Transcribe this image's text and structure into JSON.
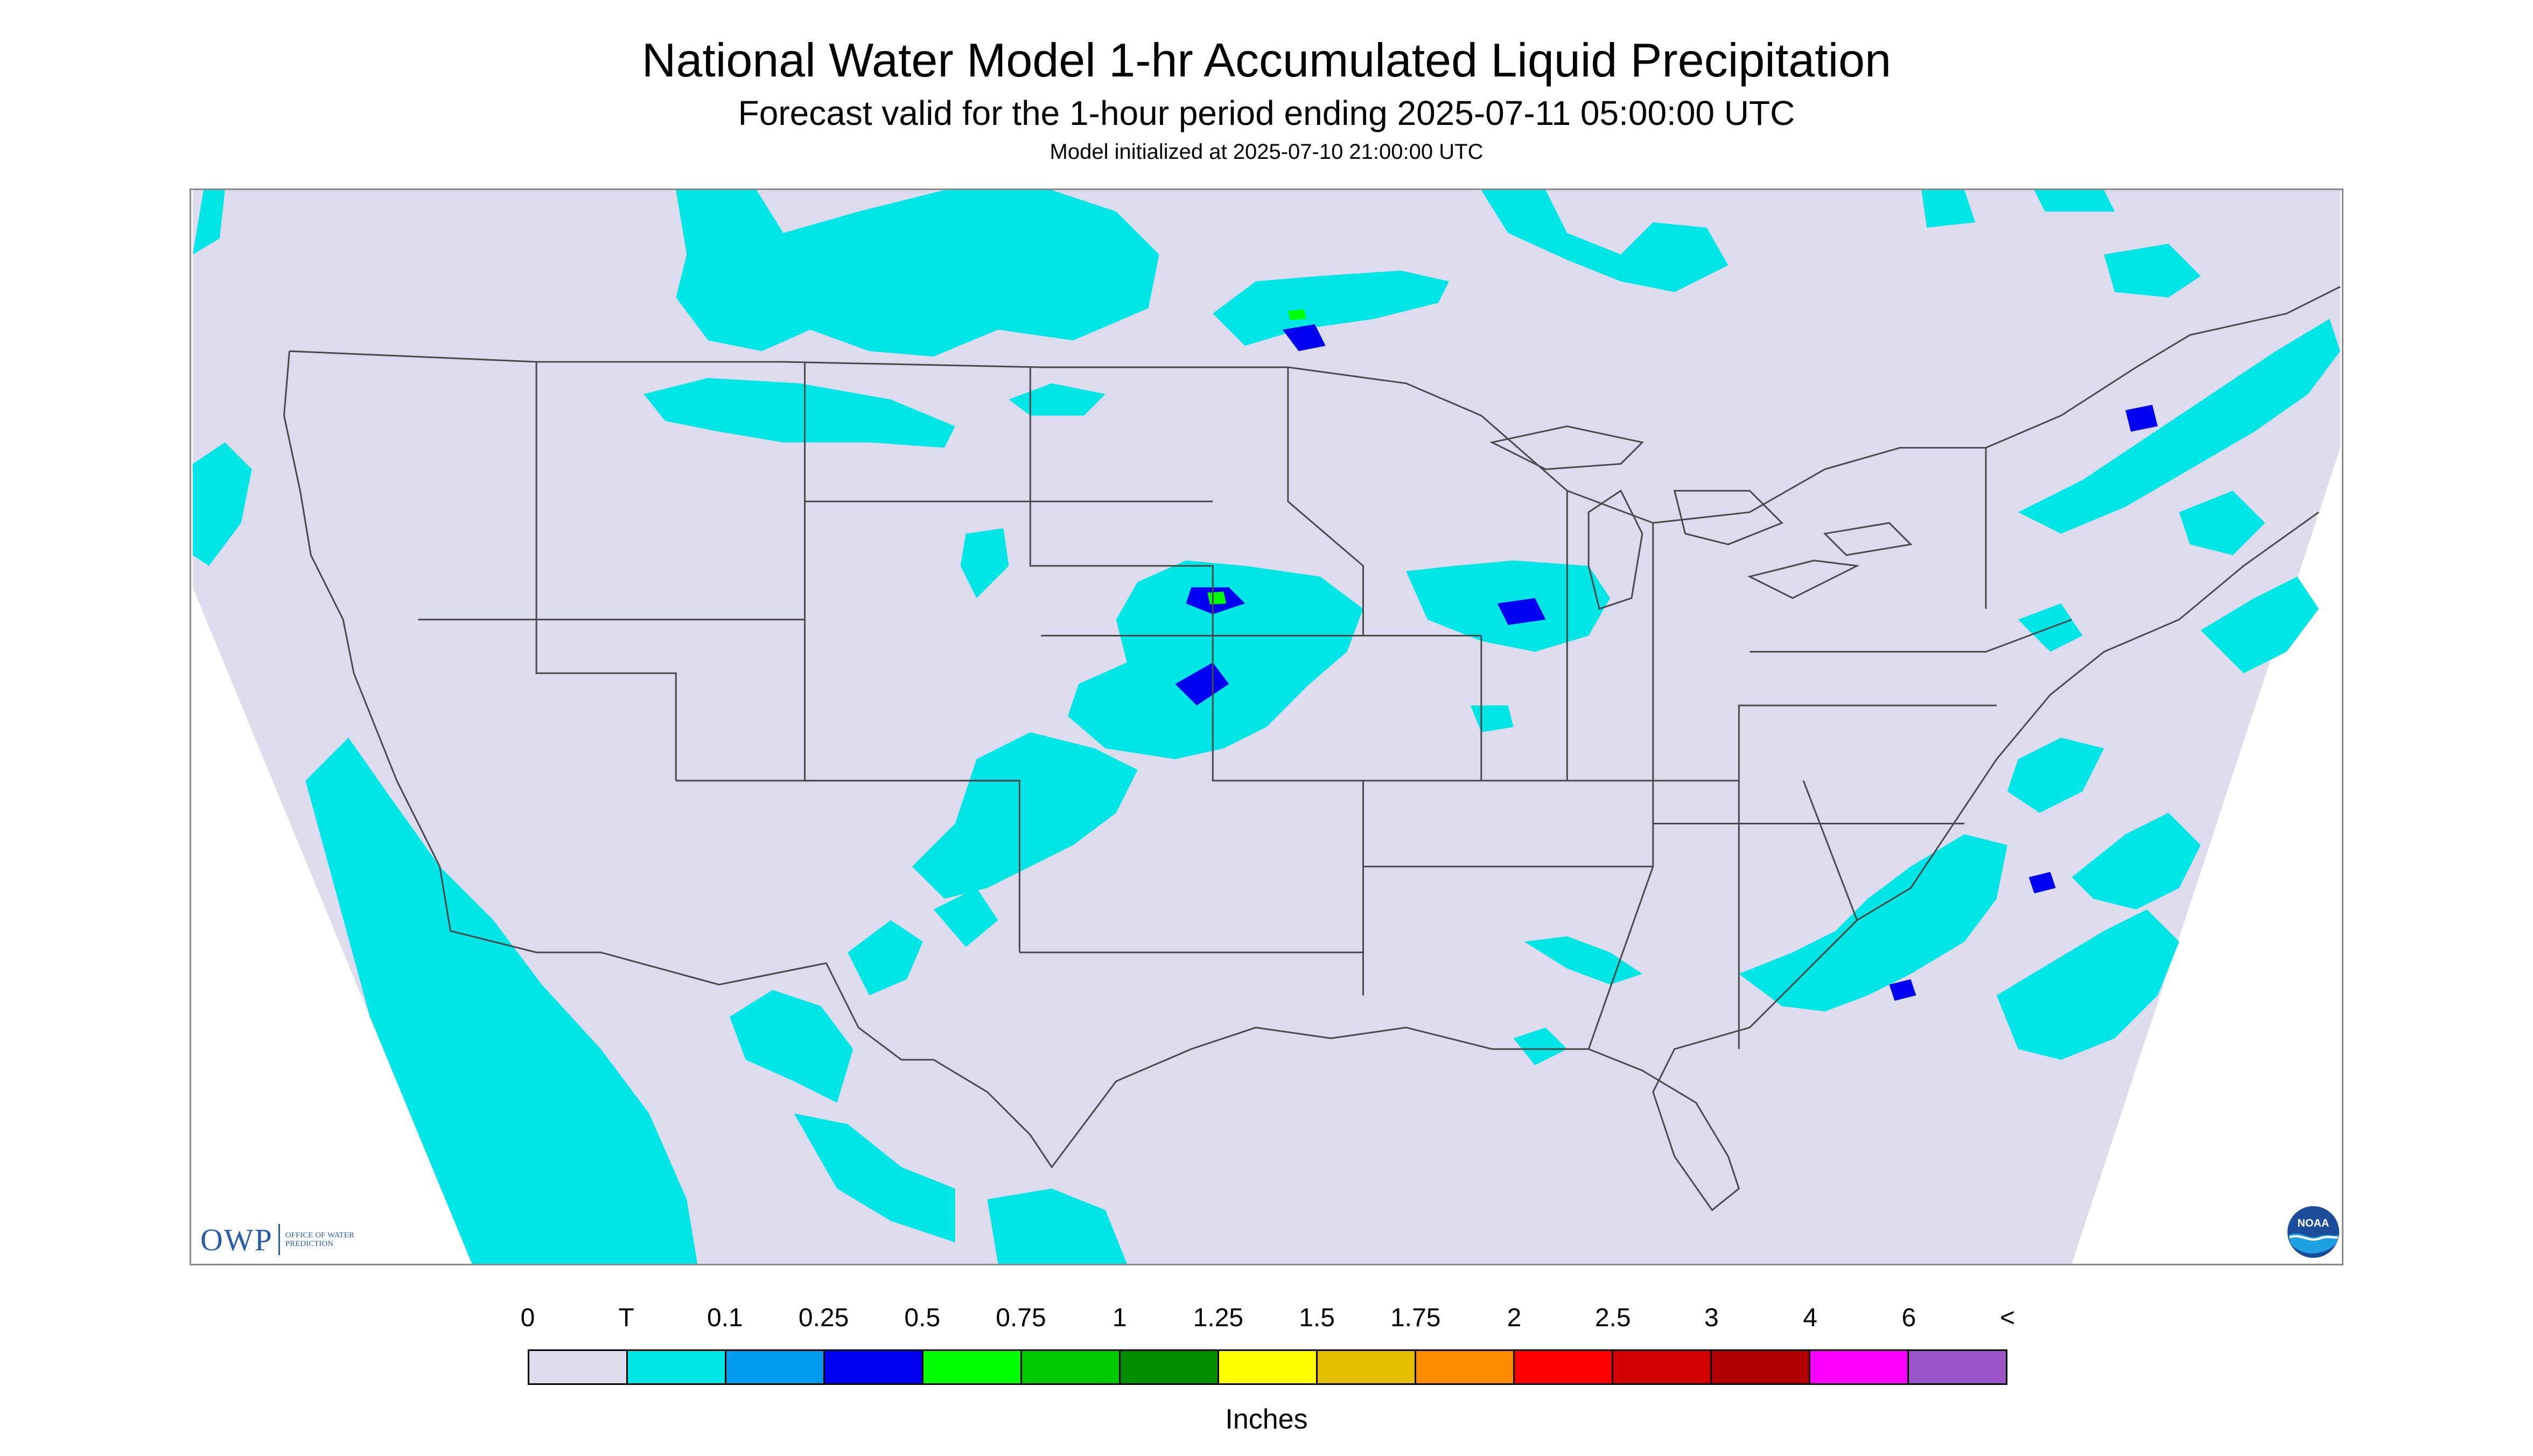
{
  "title": "National Water Model 1-hr Accumulated Liquid Precipitation",
  "subtitle": "Forecast valid for the 1-hour period ending 2025-07-11 05:00:00 UTC",
  "init_line": "Model initialized at 2025-07-10 21:00:00 UTC",
  "logos": {
    "owp_mark": "OWP",
    "owp_text": "Office of Water Prediction",
    "noaa_text": "NOAA"
  },
  "legend": {
    "unit_label": "Inches",
    "labels": [
      "0",
      "T",
      "0.1",
      "0.25",
      "0.5",
      "0.75",
      "1",
      "1.25",
      "1.5",
      "1.75",
      "2",
      "2.5",
      "3",
      "4",
      "6",
      "<"
    ],
    "colors": [
      "#dcdcee",
      "#00e5e5",
      "#009cf0",
      "#0000f0",
      "#00ff00",
      "#00c800",
      "#008c00",
      "#ffff00",
      "#e6be00",
      "#ff8c00",
      "#ff0000",
      "#d20000",
      "#b40000",
      "#ff00ff",
      "#9955c9"
    ]
  },
  "map": {
    "background_color": "#dcdcee",
    "outside_domain_color": "#ffffff",
    "boundary_color": "#4a4a4a",
    "precip_colors": {
      "trace": "#00e5e5",
      "light": "#009cf0",
      "moderate": "#0000f0",
      "heavy": "#00ff00"
    }
  }
}
